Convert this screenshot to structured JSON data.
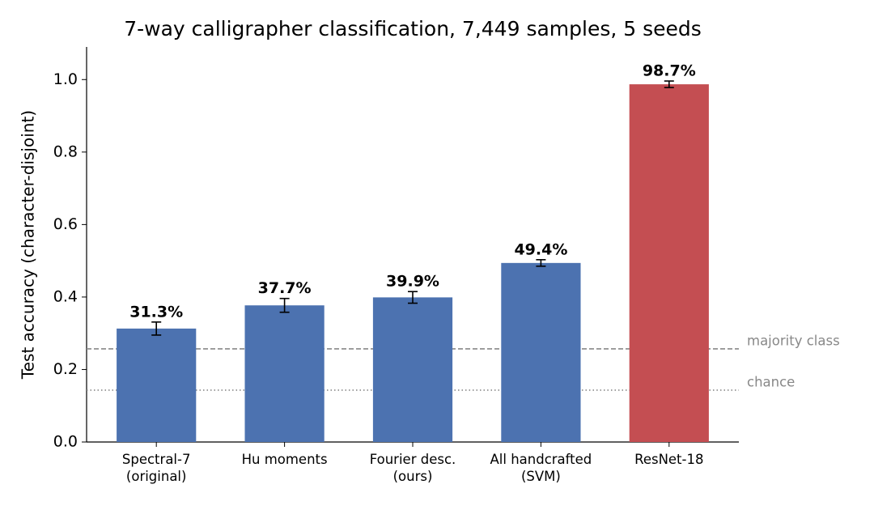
{
  "chart_data": {
    "type": "bar",
    "title": "7-way calligrapher classification, 7,449 samples, 5 seeds",
    "ylabel": "Test accuracy (character-disjoint)",
    "categories": [
      "Spectral-7\n(original)",
      "Hu moments",
      "Fourier desc.\n(ours)",
      "All handcrafted\n(SVM)",
      "ResNet-18"
    ],
    "values": [
      0.313,
      0.377,
      0.399,
      0.494,
      0.987
    ],
    "errors": [
      0.018,
      0.019,
      0.016,
      0.009,
      0.009
    ],
    "value_labels": [
      "31.3%",
      "37.7%",
      "39.9%",
      "49.4%",
      "98.7%"
    ],
    "colors": [
      "#4c72b0",
      "#4c72b0",
      "#4c72b0",
      "#4c72b0",
      "#c44e52"
    ],
    "ylim": [
      0,
      1.09
    ],
    "yticks": [
      {
        "value": 0,
        "label": "0.0"
      },
      0.2,
      0.4,
      0.6,
      0.8,
      {
        "value": 1,
        "label": "1.0"
      }
    ],
    "grid": false,
    "reference_lines": [
      {
        "label": "majority class",
        "value": 0.257,
        "style": "dashed",
        "color": "#888888"
      },
      {
        "label": "chance",
        "value": 0.143,
        "style": "dotted",
        "color": "#888888"
      }
    ]
  }
}
